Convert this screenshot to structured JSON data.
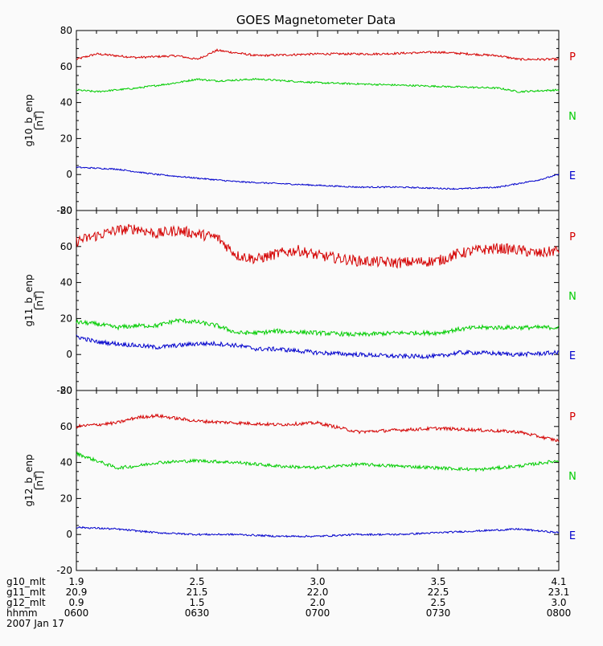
{
  "title": "GOES Magnetometer Data",
  "colors": {
    "P": "#d40000",
    "N": "#00cc00",
    "E": "#0000cc",
    "axis": "#000000",
    "background": "#fafafa"
  },
  "chart_data": [
    {
      "type": "line",
      "ylabel": "g10_b_enp",
      "yunit": "[nT]",
      "ylim": [
        -20,
        80
      ],
      "yticks": [
        -20,
        0,
        20,
        40,
        60,
        80
      ],
      "xlim": [
        0,
        120
      ],
      "legend_labels": [
        "P",
        "N",
        "E"
      ],
      "series": [
        {
          "key": "P",
          "noise": 0.6,
          "x": [
            0,
            5,
            15,
            25,
            30,
            35,
            45,
            60,
            75,
            90,
            105,
            110,
            120
          ],
          "y": [
            64,
            67,
            65,
            66,
            64,
            69,
            66,
            67,
            67,
            68,
            66,
            64,
            64
          ]
        },
        {
          "key": "N",
          "noise": 0.5,
          "x": [
            0,
            5,
            15,
            25,
            30,
            35,
            45,
            60,
            75,
            90,
            105,
            110,
            120
          ],
          "y": [
            47,
            46,
            48,
            51,
            53,
            52,
            53,
            51,
            50,
            49,
            48,
            46,
            47
          ]
        },
        {
          "key": "E",
          "noise": 0.4,
          "x": [
            0,
            10,
            20,
            30,
            40,
            50,
            60,
            70,
            80,
            95,
            105,
            115,
            120
          ],
          "y": [
            4,
            3,
            0,
            -2,
            -4,
            -5,
            -6,
            -7,
            -7,
            -8,
            -7,
            -3,
            0
          ]
        }
      ]
    },
    {
      "type": "line",
      "ylabel": "g11_b_enp",
      "yunit": "[nT]",
      "ylim": [
        -20,
        80
      ],
      "yticks": [
        -20,
        0,
        20,
        40,
        60,
        80
      ],
      "xlim": [
        0,
        120
      ],
      "legend_labels": [
        "P",
        "N",
        "E"
      ],
      "series": [
        {
          "key": "P",
          "noise": 3.0,
          "x": [
            0,
            5,
            10,
            15,
            20,
            25,
            30,
            35,
            40,
            45,
            50,
            55,
            60,
            70,
            80,
            90,
            95,
            100,
            105,
            110,
            115,
            120
          ],
          "y": [
            63,
            66,
            69,
            70,
            67,
            69,
            67,
            65,
            55,
            53,
            56,
            58,
            55,
            52,
            51,
            52,
            56,
            58,
            59,
            58,
            56,
            58
          ]
        },
        {
          "key": "N",
          "noise": 1.2,
          "x": [
            0,
            5,
            10,
            15,
            20,
            25,
            30,
            35,
            40,
            45,
            50,
            60,
            70,
            80,
            90,
            95,
            100,
            110,
            120
          ],
          "y": [
            18,
            17,
            15,
            16,
            16,
            19,
            18,
            16,
            12,
            12,
            13,
            12,
            11,
            12,
            12,
            14,
            15,
            15,
            15
          ]
        },
        {
          "key": "E",
          "noise": 1.2,
          "x": [
            0,
            5,
            10,
            15,
            20,
            25,
            30,
            35,
            40,
            45,
            50,
            60,
            70,
            80,
            90,
            95,
            100,
            110,
            120
          ],
          "y": [
            10,
            7,
            6,
            5,
            4,
            5,
            6,
            6,
            5,
            3,
            3,
            1,
            0,
            -1,
            -1,
            1,
            1,
            0,
            1
          ]
        }
      ]
    },
    {
      "type": "line",
      "ylabel": "g12_b_enp",
      "yunit": "[nT]",
      "ylim": [
        -20,
        80
      ],
      "yticks": [
        -20,
        0,
        20,
        40,
        60,
        80
      ],
      "xlim": [
        0,
        120
      ],
      "legend_labels": [
        "P",
        "N",
        "E"
      ],
      "series": [
        {
          "key": "P",
          "noise": 0.9,
          "x": [
            0,
            10,
            15,
            20,
            30,
            40,
            50,
            60,
            70,
            80,
            90,
            100,
            110,
            120
          ],
          "y": [
            60,
            62,
            65,
            66,
            63,
            62,
            61,
            62,
            57,
            58,
            59,
            58,
            57,
            52
          ]
        },
        {
          "key": "N",
          "noise": 0.9,
          "x": [
            0,
            5,
            10,
            15,
            20,
            30,
            40,
            50,
            60,
            70,
            80,
            90,
            100,
            110,
            120
          ],
          "y": [
            45,
            41,
            37,
            38,
            40,
            41,
            40,
            38,
            37,
            39,
            38,
            37,
            36,
            38,
            41
          ]
        },
        {
          "key": "E",
          "noise": 0.5,
          "x": [
            0,
            10,
            20,
            30,
            40,
            50,
            60,
            70,
            80,
            90,
            100,
            110,
            120
          ],
          "y": [
            4,
            3,
            1,
            0,
            0,
            -1,
            -1,
            0,
            0,
            1,
            2,
            3,
            1
          ]
        }
      ]
    }
  ],
  "footer": {
    "row_labels": [
      "g10_mlt",
      "g11_mlt",
      "g12_mlt",
      "hhmm"
    ],
    "date": "2007 Jan 17",
    "ticks": [
      {
        "x": 0,
        "labels": [
          "1.9",
          "20.9",
          "0.9",
          "0600"
        ]
      },
      {
        "x": 30,
        "labels": [
          "2.5",
          "21.5",
          "1.5",
          "0630"
        ]
      },
      {
        "x": 60,
        "labels": [
          "3.0",
          "22.0",
          "2.0",
          "0700"
        ]
      },
      {
        "x": 90,
        "labels": [
          "3.5",
          "22.5",
          "2.5",
          "0730"
        ]
      },
      {
        "x": 120,
        "labels": [
          "4.1",
          "23.1",
          "3.0",
          "0800"
        ]
      }
    ]
  }
}
